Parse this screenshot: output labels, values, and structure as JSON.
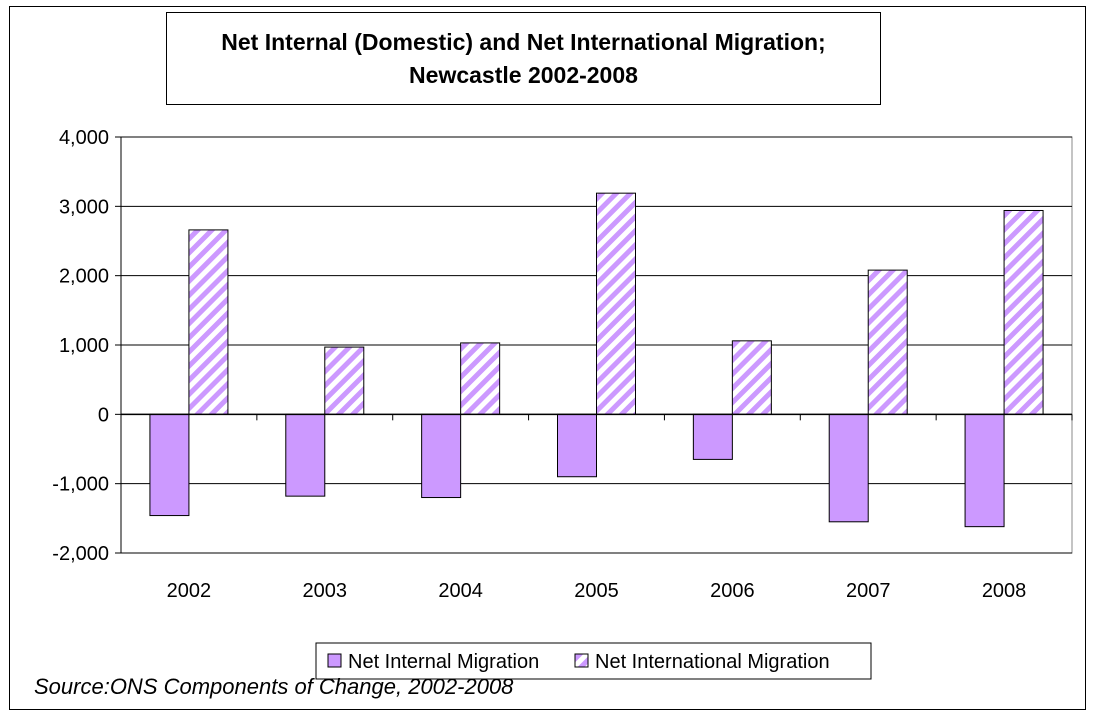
{
  "chart_data": {
    "type": "bar",
    "title": "Net Internal (Domestic) and Net International Migration;",
    "subtitle": "Newcastle 2002-2008",
    "categories": [
      "2002",
      "2003",
      "2004",
      "2005",
      "2006",
      "2007",
      "2008"
    ],
    "series": [
      {
        "name": "Net Internal Migration",
        "values": [
          -1460,
          -1180,
          -1200,
          -900,
          -650,
          -1550,
          -1620
        ],
        "color": "#cc99ff",
        "pattern": "solid"
      },
      {
        "name": "Net International Migration",
        "values": [
          2660,
          970,
          1030,
          3190,
          1060,
          2080,
          2940
        ],
        "color": "#cc99ff",
        "pattern": "diagonal-stripes"
      }
    ],
    "ylim": [
      -2000,
      4000
    ],
    "yticks": [
      -2000,
      -1000,
      0,
      1000,
      2000,
      3000,
      4000
    ],
    "ytick_labels": [
      "-2,000",
      "-1,000",
      "0",
      "1,000",
      "2,000",
      "3,000",
      "4,000"
    ],
    "grid": true,
    "legend_position": "bottom"
  },
  "source_note": "Source:ONS Components of Change, 2002-2008"
}
